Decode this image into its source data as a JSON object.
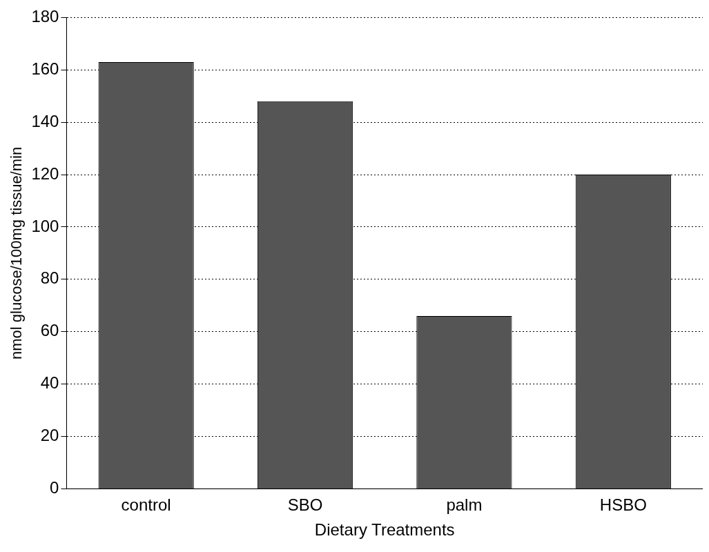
{
  "chart_data": {
    "type": "bar",
    "xlabel": "Dietary Treatments",
    "ylabel": "nmol glucose/100mg tissue/min",
    "categories": [
      "control",
      "SBO",
      "palm",
      "HSBO"
    ],
    "values": [
      163,
      148,
      66,
      120
    ],
    "color": "#555555",
    "ylim": [
      0,
      180
    ],
    "yticks": [
      0,
      20,
      40,
      60,
      80,
      100,
      120,
      140,
      160,
      180
    ],
    "grid": "y",
    "legend": false
  }
}
